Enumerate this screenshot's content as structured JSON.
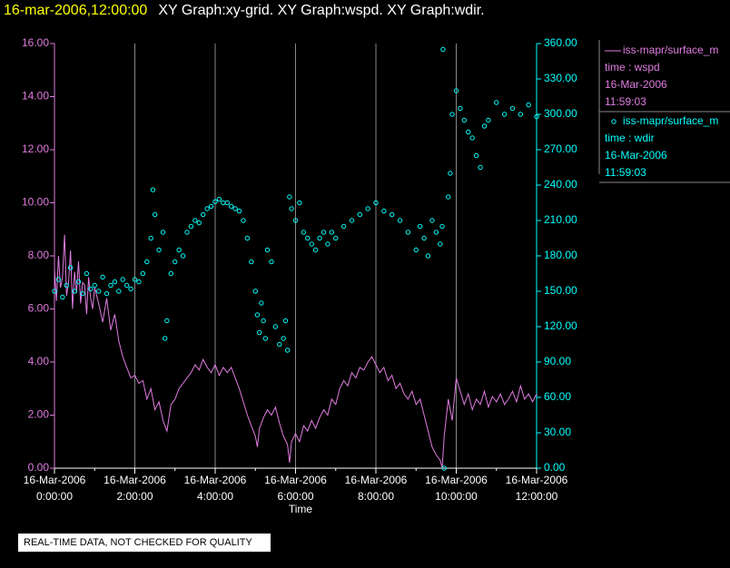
{
  "chart_data": {
    "type": "xy",
    "title": "16-mar-2006,12:00:00",
    "subtitle": "XY Graph:xy-grid.  XY Graph:wspd.  XY Graph:wdir.",
    "x_label": "Time",
    "footer": "REAL-TIME DATA, NOT CHECKED FOR QUALITY",
    "xlim": [
      0,
      12
    ],
    "xticks": [
      {
        "value": 0,
        "label": "16-Mar-2006 0:00:00"
      },
      {
        "value": 2,
        "label": "16-Mar-2006 2:00:00"
      },
      {
        "value": 4,
        "label": "16-Mar-2006 4:00:00"
      },
      {
        "value": 6,
        "label": "16-Mar-2006 6:00:00"
      },
      {
        "value": 8,
        "label": "16-Mar-2006 8:00:00"
      },
      {
        "value": 10,
        "label": "16-Mar-2006 10:00:00"
      },
      {
        "value": 12,
        "label": "16-Mar-2006 12:00:00"
      }
    ],
    "ylim": [
      0,
      16
    ],
    "yticks": [
      {
        "value": 0,
        "label": "0.00"
      },
      {
        "value": 2,
        "label": "2.00"
      },
      {
        "value": 4,
        "label": "4.00"
      },
      {
        "value": 6,
        "label": "6.00"
      },
      {
        "value": 8,
        "label": "8.00"
      },
      {
        "value": 10,
        "label": "10.00"
      },
      {
        "value": 12,
        "label": "12.00"
      },
      {
        "value": 14,
        "label": "14.00"
      },
      {
        "value": 16,
        "label": "16.00"
      }
    ],
    "y2lim": [
      0,
      360
    ],
    "y2ticks": [
      {
        "value": 0,
        "label": "0.00"
      },
      {
        "value": 30,
        "label": "30.00"
      },
      {
        "value": 60,
        "label": "60.00"
      },
      {
        "value": 90,
        "label": "90.00"
      },
      {
        "value": 120,
        "label": "120.00"
      },
      {
        "value": 150,
        "label": "150.00"
      },
      {
        "value": 180,
        "label": "180.00"
      },
      {
        "value": 210,
        "label": "210.00"
      },
      {
        "value": 240,
        "label": "240.00"
      },
      {
        "value": 270,
        "label": "270.00"
      },
      {
        "value": 300,
        "label": "300.00"
      },
      {
        "value": 330,
        "label": "330.00"
      },
      {
        "value": 360,
        "label": "360.00"
      }
    ],
    "grid": true,
    "series": [
      {
        "name": "iss-mapr/surface_m",
        "type": "line",
        "color": "#e07ce0",
        "legend_lines": [
          "time : wspd",
          "16-Mar-2006",
          "11:59:03"
        ],
        "x": [
          0,
          0.05,
          0.1,
          0.15,
          0.2,
          0.25,
          0.3,
          0.35,
          0.4,
          0.45,
          0.5,
          0.55,
          0.6,
          0.65,
          0.7,
          0.75,
          0.8,
          0.85,
          0.9,
          0.95,
          1.0,
          1.1,
          1.2,
          1.3,
          1.4,
          1.5,
          1.6,
          1.7,
          1.8,
          1.9,
          2.0,
          2.1,
          2.2,
          2.3,
          2.4,
          2.5,
          2.6,
          2.7,
          2.8,
          2.9,
          3.0,
          3.1,
          3.2,
          3.3,
          3.4,
          3.5,
          3.6,
          3.7,
          3.8,
          3.9,
          4.0,
          4.1,
          4.2,
          4.3,
          4.4,
          4.5,
          4.6,
          4.7,
          4.8,
          4.9,
          5.0,
          5.05,
          5.1,
          5.2,
          5.3,
          5.4,
          5.5,
          5.6,
          5.7,
          5.8,
          5.85,
          5.9,
          6.0,
          6.1,
          6.2,
          6.3,
          6.4,
          6.5,
          6.6,
          6.7,
          6.8,
          6.9,
          7.0,
          7.1,
          7.2,
          7.3,
          7.4,
          7.5,
          7.6,
          7.7,
          7.8,
          7.9,
          8.0,
          8.1,
          8.2,
          8.3,
          8.4,
          8.5,
          8.6,
          8.7,
          8.8,
          8.9,
          9.0,
          9.1,
          9.2,
          9.3,
          9.4,
          9.5,
          9.6,
          9.65,
          9.7,
          9.8,
          9.9,
          10.0,
          10.1,
          10.2,
          10.3,
          10.4,
          10.5,
          10.6,
          10.7,
          10.8,
          10.9,
          11.0,
          11.1,
          11.2,
          11.3,
          11.4,
          11.5,
          11.6,
          11.7,
          11.8,
          11.9,
          12.0
        ],
        "values": [
          7.5,
          6.3,
          8.0,
          6.8,
          7.2,
          8.8,
          6.5,
          7.0,
          8.2,
          6.0,
          7.4,
          6.6,
          7.8,
          6.2,
          7.0,
          6.9,
          5.8,
          7.2,
          6.4,
          6.0,
          6.8,
          6.2,
          5.5,
          6.4,
          5.2,
          5.8,
          4.8,
          4.2,
          3.8,
          3.4,
          3.5,
          3.2,
          3.3,
          2.6,
          3.0,
          2.2,
          2.5,
          1.8,
          1.4,
          2.4,
          2.6,
          3.0,
          3.2,
          3.4,
          3.6,
          3.9,
          3.7,
          4.1,
          3.8,
          3.6,
          3.9,
          3.5,
          3.8,
          3.6,
          3.8,
          3.4,
          3.0,
          2.5,
          2.0,
          1.6,
          1.2,
          0.8,
          1.5,
          1.9,
          2.2,
          2.0,
          2.3,
          1.7,
          1.2,
          0.9,
          0.2,
          1.0,
          1.3,
          1.0,
          1.6,
          1.4,
          1.8,
          1.5,
          1.9,
          2.2,
          2.0,
          2.6,
          2.4,
          3.0,
          3.3,
          3.1,
          3.6,
          3.4,
          3.8,
          3.7,
          4.0,
          4.2,
          3.9,
          3.6,
          3.8,
          3.3,
          3.5,
          3.0,
          3.2,
          2.8,
          2.6,
          2.9,
          2.4,
          2.6,
          2.0,
          1.4,
          0.8,
          0.5,
          0.3,
          0.0,
          1.2,
          2.6,
          1.8,
          3.4,
          2.9,
          2.4,
          2.8,
          2.2,
          2.6,
          2.4,
          2.9,
          2.3,
          2.7,
          2.5,
          2.8,
          2.4,
          2.6,
          2.9,
          2.5,
          3.1,
          2.6,
          2.8,
          2.5,
          2.8
        ]
      },
      {
        "name": "iss-mapr/surface_m",
        "type": "scatter",
        "axis": "y2",
        "color": "#00ffff",
        "legend_lines": [
          "time : wdir",
          "16-Mar-2006",
          "11:59:03"
        ],
        "x": [
          0,
          0.1,
          0.2,
          0.3,
          0.4,
          0.5,
          0.6,
          0.7,
          0.8,
          0.9,
          1.0,
          1.1,
          1.2,
          1.3,
          1.4,
          1.5,
          1.6,
          1.7,
          1.8,
          1.9,
          2.0,
          2.1,
          2.2,
          2.3,
          2.4,
          2.45,
          2.5,
          2.6,
          2.7,
          2.75,
          2.8,
          2.9,
          3.0,
          3.1,
          3.2,
          3.3,
          3.4,
          3.5,
          3.6,
          3.7,
          3.8,
          3.9,
          4.0,
          4.1,
          4.2,
          4.3,
          4.4,
          4.5,
          4.6,
          4.7,
          4.8,
          4.9,
          5.0,
          5.05,
          5.1,
          5.15,
          5.2,
          5.25,
          5.3,
          5.4,
          5.5,
          5.6,
          5.7,
          5.75,
          5.8,
          5.85,
          5.9,
          6.0,
          6.1,
          6.2,
          6.3,
          6.4,
          6.5,
          6.6,
          6.7,
          6.8,
          6.9,
          7.0,
          7.2,
          7.4,
          7.6,
          7.8,
          8.0,
          8.2,
          8.4,
          8.6,
          8.8,
          9.0,
          9.1,
          9.2,
          9.3,
          9.4,
          9.5,
          9.6,
          9.65,
          9.67,
          9.7,
          9.8,
          9.85,
          9.9,
          10.0,
          10.1,
          10.2,
          10.3,
          10.4,
          10.5,
          10.6,
          10.7,
          10.8,
          11.0,
          11.2,
          11.4,
          11.6,
          11.8,
          12.0
        ],
        "values": [
          150,
          160,
          145,
          155,
          170,
          150,
          158,
          148,
          165,
          152,
          155,
          150,
          162,
          148,
          155,
          158,
          150,
          160,
          155,
          152,
          160,
          158,
          165,
          175,
          195,
          236,
          215,
          185,
          200,
          110,
          125,
          165,
          175,
          185,
          180,
          200,
          205,
          210,
          208,
          215,
          220,
          222,
          226,
          228,
          225,
          225,
          222,
          220,
          218,
          210,
          195,
          175,
          150,
          130,
          115,
          140,
          125,
          110,
          185,
          175,
          120,
          105,
          110,
          125,
          100,
          230,
          220,
          210,
          225,
          200,
          195,
          190,
          185,
          195,
          200,
          190,
          200,
          195,
          205,
          210,
          215,
          220,
          225,
          218,
          215,
          210,
          200,
          185,
          205,
          195,
          180,
          210,
          200,
          190,
          205,
          355,
          0,
          230,
          250,
          300,
          320,
          305,
          295,
          285,
          280,
          265,
          255,
          290,
          295,
          310,
          300,
          305,
          300,
          308,
          298
        ]
      }
    ]
  }
}
